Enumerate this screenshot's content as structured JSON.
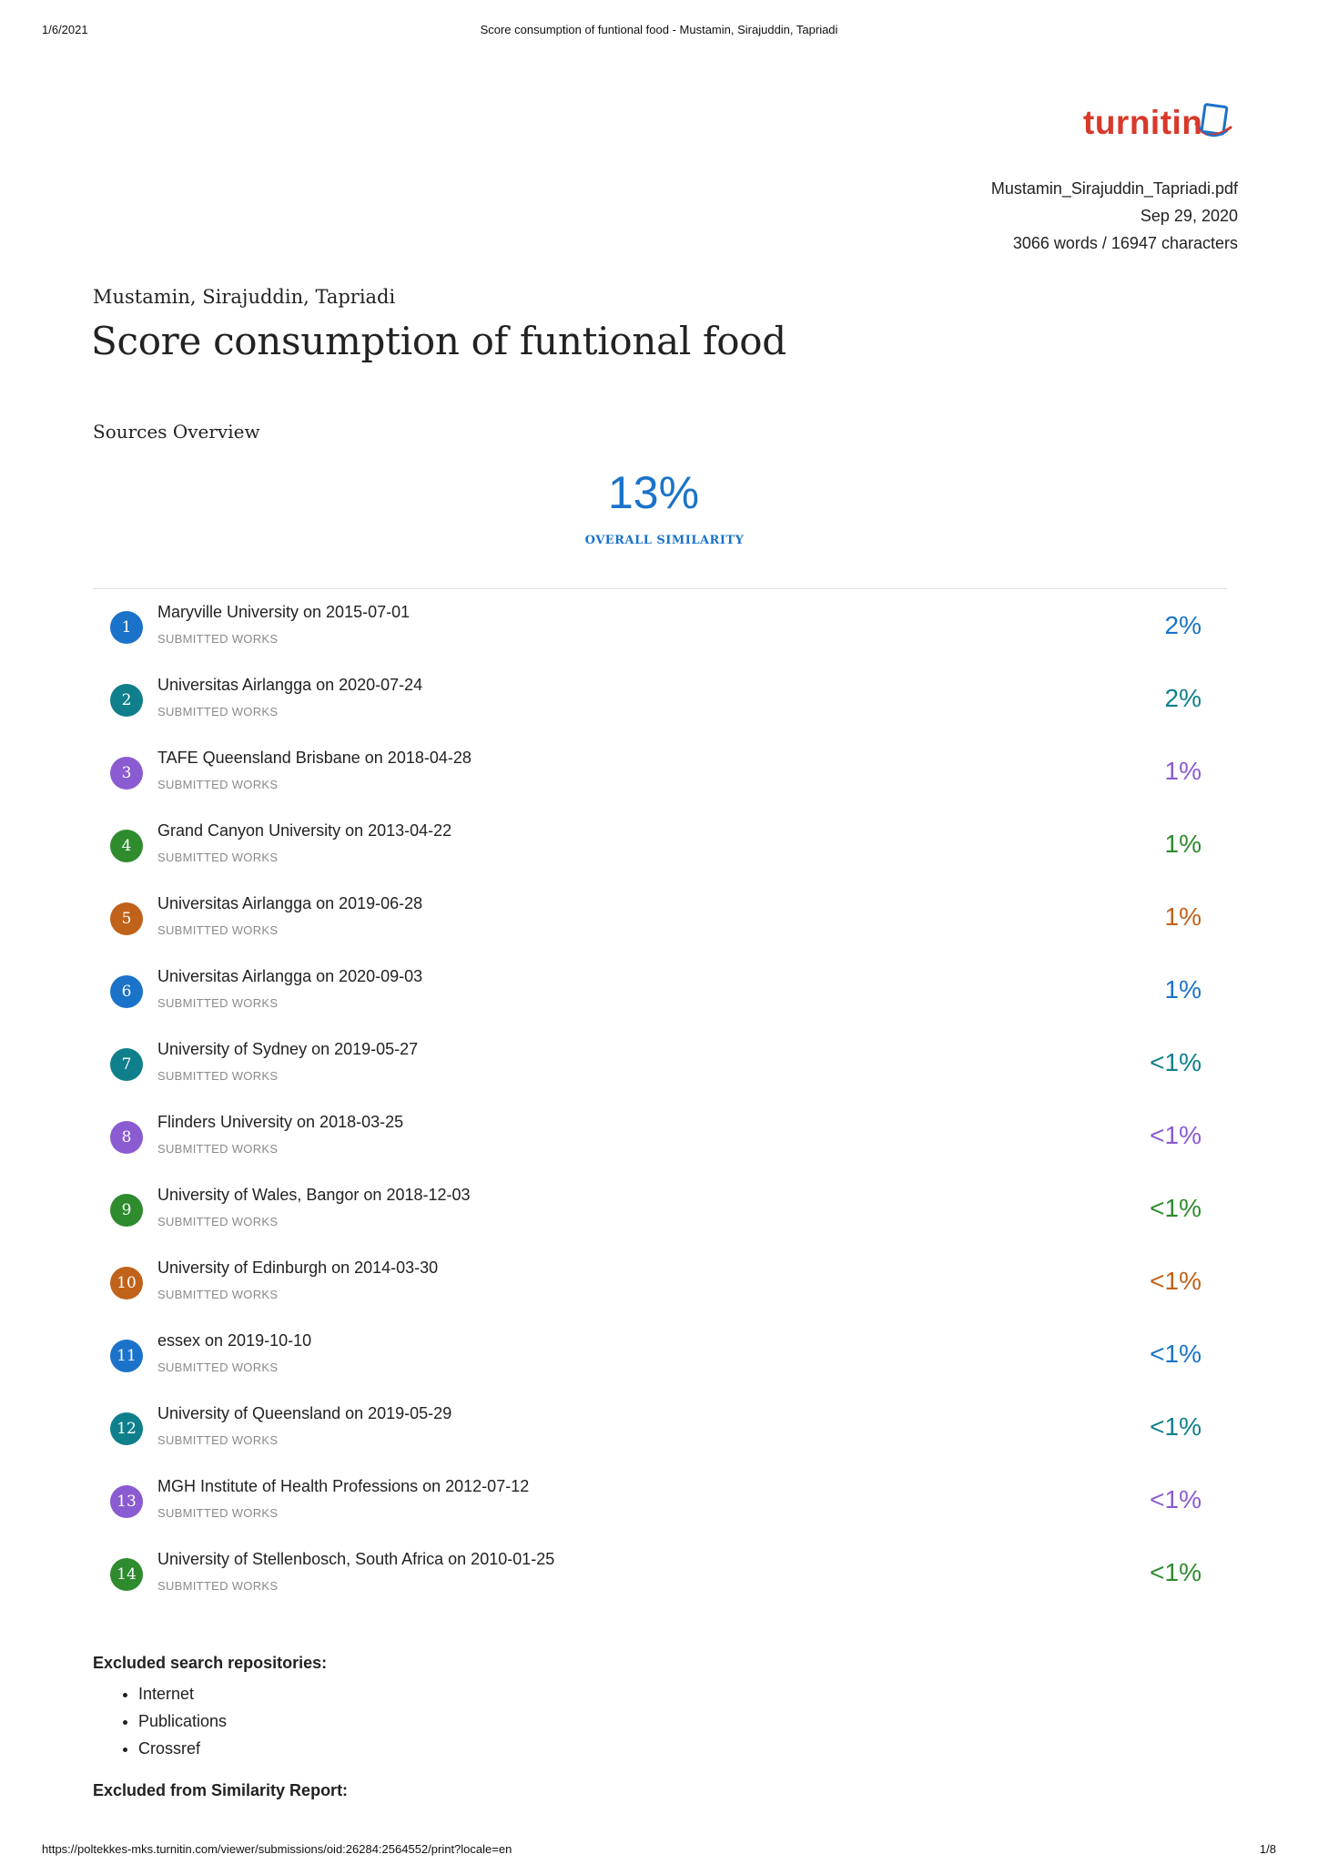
{
  "print_header": {
    "date": "1/6/2021",
    "title": "Score consumption of funtional food - Mustamin, Sirajuddin, Tapriadi"
  },
  "logo": {
    "text": "turnitin",
    "icon": "turnitin-document-icon",
    "color": "#d8392b"
  },
  "file": {
    "name": "Mustamin_Sirajuddin_Tapriadi.pdf",
    "date": "Sep 29, 2020",
    "counts": "3066 words / 16947 characters"
  },
  "authors": "Mustamin, Sirajuddin, Tapriadi",
  "title": "Score consumption of funtional food",
  "sources_overview": {
    "heading": "Sources Overview",
    "overall_value": "13%",
    "overall_label": "OVERALL SIMILARITY"
  },
  "colors": {
    "blue": "#1a73c9",
    "teal": "#0f7f8c",
    "purple": "#8a5bd1",
    "green": "#2e8b2e",
    "orange": "#c0621a"
  },
  "sources": [
    {
      "number": "1",
      "name": "Maryville University on 2015-07-01",
      "type": "SUBMITTED WORKS",
      "percent": "2%",
      "color": "#1a73c9"
    },
    {
      "number": "2",
      "name": "Universitas Airlangga on 2020-07-24",
      "type": "SUBMITTED WORKS",
      "percent": "2%",
      "color": "#0f7f8c"
    },
    {
      "number": "3",
      "name": "TAFE Queensland Brisbane on 2018-04-28",
      "type": "SUBMITTED WORKS",
      "percent": "1%",
      "color": "#8a5bd1"
    },
    {
      "number": "4",
      "name": "Grand Canyon University on 2013-04-22",
      "type": "SUBMITTED WORKS",
      "percent": "1%",
      "color": "#2e8b2e"
    },
    {
      "number": "5",
      "name": "Universitas Airlangga on 2019-06-28",
      "type": "SUBMITTED WORKS",
      "percent": "1%",
      "color": "#c0621a"
    },
    {
      "number": "6",
      "name": "Universitas Airlangga on 2020-09-03",
      "type": "SUBMITTED WORKS",
      "percent": "1%",
      "color": "#1a73c9"
    },
    {
      "number": "7",
      "name": "University of Sydney on 2019-05-27",
      "type": "SUBMITTED WORKS",
      "percent": "<1%",
      "color": "#0f7f8c"
    },
    {
      "number": "8",
      "name": "Flinders University on 2018-03-25",
      "type": "SUBMITTED WORKS",
      "percent": "<1%",
      "color": "#8a5bd1"
    },
    {
      "number": "9",
      "name": "University of Wales, Bangor on 2018-12-03",
      "type": "SUBMITTED WORKS",
      "percent": "<1%",
      "color": "#2e8b2e"
    },
    {
      "number": "10",
      "name": "University of Edinburgh on 2014-03-30",
      "type": "SUBMITTED WORKS",
      "percent": "<1%",
      "color": "#c0621a"
    },
    {
      "number": "11",
      "name": "essex on 2019-10-10",
      "type": "SUBMITTED WORKS",
      "percent": "<1%",
      "color": "#1a73c9"
    },
    {
      "number": "12",
      "name": "University of Queensland on 2019-05-29",
      "type": "SUBMITTED WORKS",
      "percent": "<1%",
      "color": "#0f7f8c"
    },
    {
      "number": "13",
      "name": "MGH Institute of Health Professions on 2012-07-12",
      "type": "SUBMITTED WORKS",
      "percent": "<1%",
      "color": "#8a5bd1"
    },
    {
      "number": "14",
      "name": "University of Stellenbosch, South Africa on 2010-01-25",
      "type": "SUBMITTED WORKS",
      "percent": "<1%",
      "color": "#2e8b2e"
    }
  ],
  "excluded_repositories": {
    "heading": "Excluded search repositories:",
    "items": [
      "Internet",
      "Publications",
      "Crossref"
    ]
  },
  "excluded_from_report": {
    "heading": "Excluded from Similarity Report:"
  },
  "print_footer": {
    "url": "https://poltekkes-mks.turnitin.com/viewer/submissions/oid:26284:2564552/print?locale=en",
    "page": "1/8"
  }
}
